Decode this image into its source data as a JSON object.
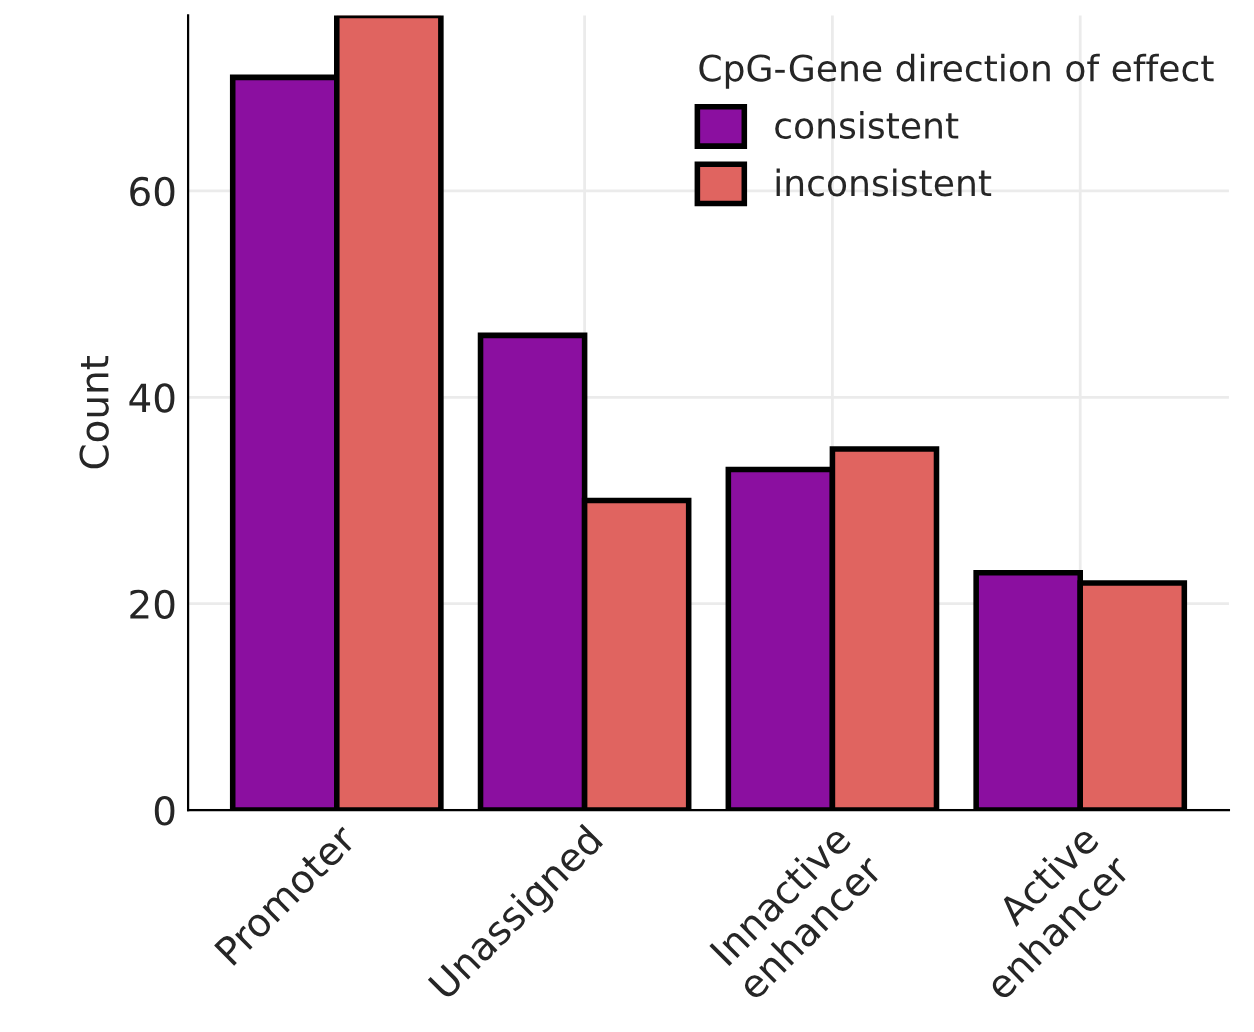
{
  "chart_data": {
    "type": "bar",
    "ylabel": "Count",
    "legend_title": "CpG-Gene direction of effect",
    "categories": [
      "Promoter",
      "Unassigned",
      "Innactive\nenhancer",
      "Active\nenhancer"
    ],
    "series": [
      {
        "name": "consistent",
        "color": "#8b0fa0",
        "values": [
          71,
          46,
          33,
          23
        ]
      },
      {
        "name": "inconsistent",
        "color": "#e06460",
        "values": [
          77,
          30,
          35,
          22
        ]
      }
    ],
    "ylim": [
      0,
      77
    ],
    "yticks": [
      0,
      20,
      40,
      60
    ],
    "grid": true,
    "legend": "top right"
  }
}
